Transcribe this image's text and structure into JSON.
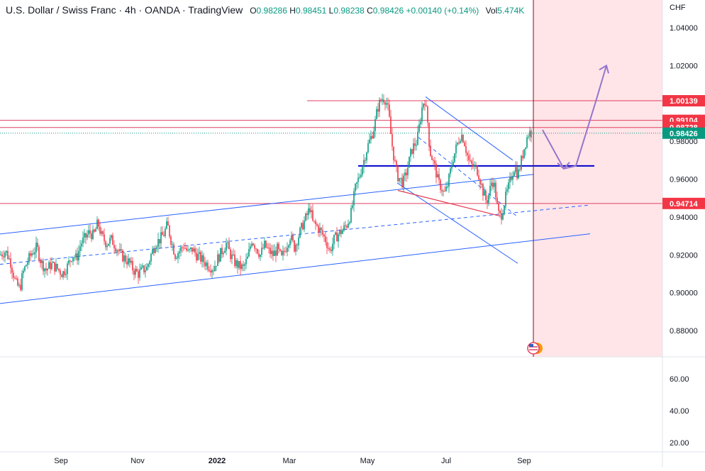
{
  "header": {
    "title": "U.S. Dollar / Swiss Franc · 4h · OANDA · TradingView",
    "open_label": "O",
    "open": "0.98286",
    "high_label": "H",
    "high": "0.98451",
    "low_label": "L",
    "low": "0.98238",
    "close_label": "C",
    "close": "0.98426",
    "change": "+0.00140 (+0.14%)",
    "vol_label": "Vol",
    "vol": "5.474K"
  },
  "currency": "CHF",
  "colors": {
    "up": "#089981",
    "down": "#f23645",
    "trendline": "#2962ff",
    "red_line": "#c2185b",
    "blue_line": "#0000cd",
    "arrow": "#9575cd",
    "shade": "#ffe5e8",
    "price_tag": "#f23645",
    "last_tag": "#089981"
  },
  "chart_data": {
    "type": "candlestick",
    "symbol": "U.S. Dollar / Swiss Franc",
    "timeframe": "4h",
    "price_axis": {
      "ticks": [
        "1.04000",
        "1.02000",
        "1.00000",
        "0.98000",
        "0.96000",
        "0.94000",
        "0.92000",
        "0.90000",
        "0.88000"
      ],
      "range": [
        0.867,
        1.053
      ]
    },
    "indicator_axis": {
      "ticks": [
        "60.00",
        "40.00",
        "20.00"
      ]
    },
    "x_axis": {
      "ticks": [
        "Sep",
        "Nov",
        "2022",
        "Mar",
        "May",
        "Jul",
        "Sep"
      ]
    },
    "price_levels": [
      {
        "value": 1.00139,
        "label": "1.00139"
      },
      {
        "value": 0.99104,
        "label": "0.99104"
      },
      {
        "value": 0.98728,
        "label": "0.98728"
      },
      {
        "value": 0.98426,
        "label": "0.98426",
        "last": true
      },
      {
        "value": 0.94714,
        "label": "0.94714"
      }
    ],
    "support_level": 0.967,
    "price_path": [
      [
        0,
        0.92
      ],
      [
        8,
        0.922
      ],
      [
        15,
        0.916
      ],
      [
        22,
        0.905
      ],
      [
        28,
        0.902
      ],
      [
        32,
        0.91
      ],
      [
        38,
        0.916
      ],
      [
        45,
        0.921
      ],
      [
        52,
        0.924
      ],
      [
        58,
        0.916
      ],
      [
        65,
        0.912
      ],
      [
        72,
        0.915
      ],
      [
        80,
        0.913
      ],
      [
        88,
        0.91
      ],
      [
        95,
        0.914
      ],
      [
        102,
        0.92
      ],
      [
        108,
        0.918
      ],
      [
        114,
        0.926
      ],
      [
        120,
        0.929
      ],
      [
        126,
        0.932
      ],
      [
        132,
        0.93
      ],
      [
        138,
        0.937
      ],
      [
        143,
        0.93
      ],
      [
        150,
        0.926
      ],
      [
        157,
        0.928
      ],
      [
        164,
        0.924
      ],
      [
        170,
        0.92
      ],
      [
        176,
        0.918
      ],
      [
        182,
        0.916
      ],
      [
        188,
        0.912
      ],
      [
        195,
        0.91
      ],
      [
        201,
        0.912
      ],
      [
        207,
        0.913
      ],
      [
        213,
        0.92
      ],
      [
        219,
        0.926
      ],
      [
        225,
        0.928
      ],
      [
        231,
        0.931
      ],
      [
        236,
        0.936
      ],
      [
        241,
        0.928
      ],
      [
        247,
        0.92
      ],
      [
        253,
        0.922
      ],
      [
        259,
        0.925
      ],
      [
        265,
        0.921
      ],
      [
        271,
        0.923
      ],
      [
        277,
        0.92
      ],
      [
        283,
        0.918
      ],
      [
        289,
        0.916
      ],
      [
        295,
        0.914
      ],
      [
        301,
        0.913
      ],
      [
        307,
        0.918
      ],
      [
        313,
        0.922
      ],
      [
        319,
        0.926
      ],
      [
        325,
        0.92
      ],
      [
        331,
        0.916
      ],
      [
        337,
        0.914
      ],
      [
        343,
        0.913
      ],
      [
        349,
        0.918
      ],
      [
        355,
        0.928
      ],
      [
        361,
        0.924
      ],
      [
        367,
        0.92
      ],
      [
        373,
        0.925
      ],
      [
        379,
        0.922
      ],
      [
        385,
        0.92
      ],
      [
        391,
        0.923
      ],
      [
        397,
        0.918
      ],
      [
        403,
        0.924
      ],
      [
        409,
        0.93
      ],
      [
        415,
        0.924
      ],
      [
        421,
        0.93
      ],
      [
        427,
        0.936
      ],
      [
        433,
        0.941
      ],
      [
        437,
        0.945
      ],
      [
        441,
        0.937
      ],
      [
        447,
        0.935
      ],
      [
        453,
        0.932
      ],
      [
        459,
        0.928
      ],
      [
        465,
        0.922
      ],
      [
        471,
        0.928
      ],
      [
        477,
        0.931
      ],
      [
        483,
        0.933
      ],
      [
        489,
        0.936
      ],
      [
        495,
        0.942
      ],
      [
        501,
        0.955
      ],
      [
        507,
        0.962
      ],
      [
        513,
        0.97
      ],
      [
        518,
        0.977
      ],
      [
        523,
        0.982
      ],
      [
        528,
        0.988
      ],
      [
        532,
        0.997
      ],
      [
        536,
        1.001
      ],
      [
        540,
        1.003
      ],
      [
        544,
        1.002
      ],
      [
        548,
        0.995
      ],
      [
        552,
        0.98
      ],
      [
        556,
        0.97
      ],
      [
        560,
        0.962
      ],
      [
        564,
        0.96
      ],
      [
        568,
        0.958
      ],
      [
        572,
        0.962
      ],
      [
        576,
        0.968
      ],
      [
        580,
        0.975
      ],
      [
        584,
        0.978
      ],
      [
        588,
        0.98
      ],
      [
        592,
        0.99
      ],
      [
        596,
        1.0
      ],
      [
        599,
        1.002
      ],
      [
        603,
        0.99
      ],
      [
        606,
        0.975
      ],
      [
        610,
        0.97
      ],
      [
        614,
        0.965
      ],
      [
        618,
        0.958
      ],
      [
        622,
        0.956
      ],
      [
        626,
        0.952
      ],
      [
        630,
        0.955
      ],
      [
        634,
        0.962
      ],
      [
        638,
        0.97
      ],
      [
        642,
        0.975
      ],
      [
        646,
        0.98
      ],
      [
        650,
        0.984
      ],
      [
        654,
        0.981
      ],
      [
        658,
        0.974
      ],
      [
        662,
        0.968
      ],
      [
        666,
        0.967
      ],
      [
        670,
        0.966
      ],
      [
        674,
        0.964
      ],
      [
        678,
        0.958
      ],
      [
        682,
        0.952
      ],
      [
        686,
        0.948
      ],
      [
        690,
        0.953
      ],
      [
        694,
        0.96
      ],
      [
        698,
        0.955
      ],
      [
        702,
        0.942
      ],
      [
        706,
        0.94
      ],
      [
        710,
        0.946
      ],
      [
        714,
        0.952
      ],
      [
        718,
        0.957
      ],
      [
        722,
        0.963
      ],
      [
        726,
        0.967
      ],
      [
        730,
        0.962
      ],
      [
        734,
        0.968
      ],
      [
        738,
        0.975
      ],
      [
        742,
        0.981
      ],
      [
        746,
        0.985
      ],
      [
        750,
        0.984
      ]
    ],
    "annotations": {
      "channel_upper": [
        [
          0,
          0.931
        ],
        [
          752,
          0.9625
        ]
      ],
      "channel_middle": [
        [
          0,
          0.915
        ],
        [
          832,
          0.9463
        ]
      ],
      "channel_lower": [
        [
          0,
          0.8943
        ],
        [
          832,
          0.9311
        ]
      ],
      "red_triangle_left": [
        [
          561,
          0.954
        ],
        [
          705,
          0.9405
        ]
      ],
      "down_channel_upper": [
        [
          600,
          1.0035
        ],
        [
          723,
          0.97
        ]
      ],
      "down_channel_lower": [
        [
          560,
          0.958
        ],
        [
          730,
          0.9155
        ]
      ],
      "down_channel_mid": [
        [
          590,
          0.982
        ],
        [
          730,
          0.94
        ]
      ],
      "support_line": [
        [
          505,
          0.967
        ],
        [
          838,
          0.967
        ]
      ],
      "upper_ray": [
        [
          433,
          1.00139
        ],
        [
          752,
          1.00139
        ]
      ],
      "projection_arrow": [
        [
          765,
          0.986
        ],
        [
          795,
          0.9655
        ],
        [
          812,
          0.967
        ],
        [
          840,
          1.001
        ],
        [
          855,
          1.02
        ]
      ],
      "shade_start_x": 752,
      "cursor_x": 752
    }
  }
}
